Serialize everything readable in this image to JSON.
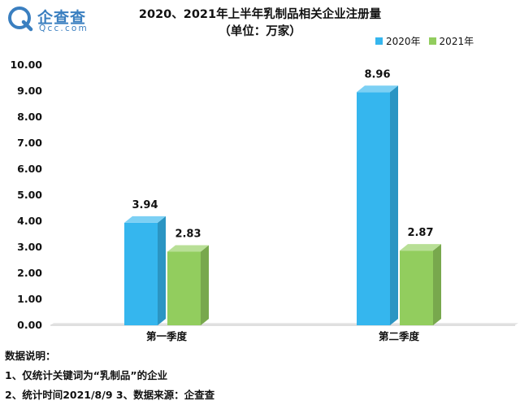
{
  "brand": {
    "name_cn": "企查查",
    "name_en": "Qcc.com",
    "color": "#3a7fc0"
  },
  "title_line1": "2020、2021年上半年乳制品相关企业注册量",
  "title_line2": "（单位：万家）",
  "notes": [
    "数据说明：",
    "1、仅统计关键词为“乳制品”的企业",
    "2、统计时间2021/8/9   3、数据来源：企查查"
  ],
  "chart_data": {
    "type": "bar",
    "categories": [
      "第一季度",
      "第二季度"
    ],
    "series": [
      {
        "name": "2020年",
        "values": [
          3.94,
          8.96
        ],
        "labels": [
          "3.94",
          "8.96"
        ],
        "color": "#35b6ee"
      },
      {
        "name": "2021年",
        "values": [
          2.83,
          2.87
        ],
        "labels": [
          "2.83",
          "2.87"
        ],
        "color": "#92cd5e"
      }
    ],
    "yticks": [
      "0.00",
      "1.00",
      "2.00",
      "3.00",
      "4.00",
      "5.00",
      "6.00",
      "7.00",
      "8.00",
      "9.00",
      "10.00"
    ],
    "ylim": [
      0,
      10
    ],
    "title": "2020、2021年上半年乳制品相关企业注册量",
    "subtitle": "（单位：万家）",
    "xlabel": "",
    "ylabel": "",
    "grid": false,
    "legend_position": "top-right",
    "style": "3d"
  }
}
